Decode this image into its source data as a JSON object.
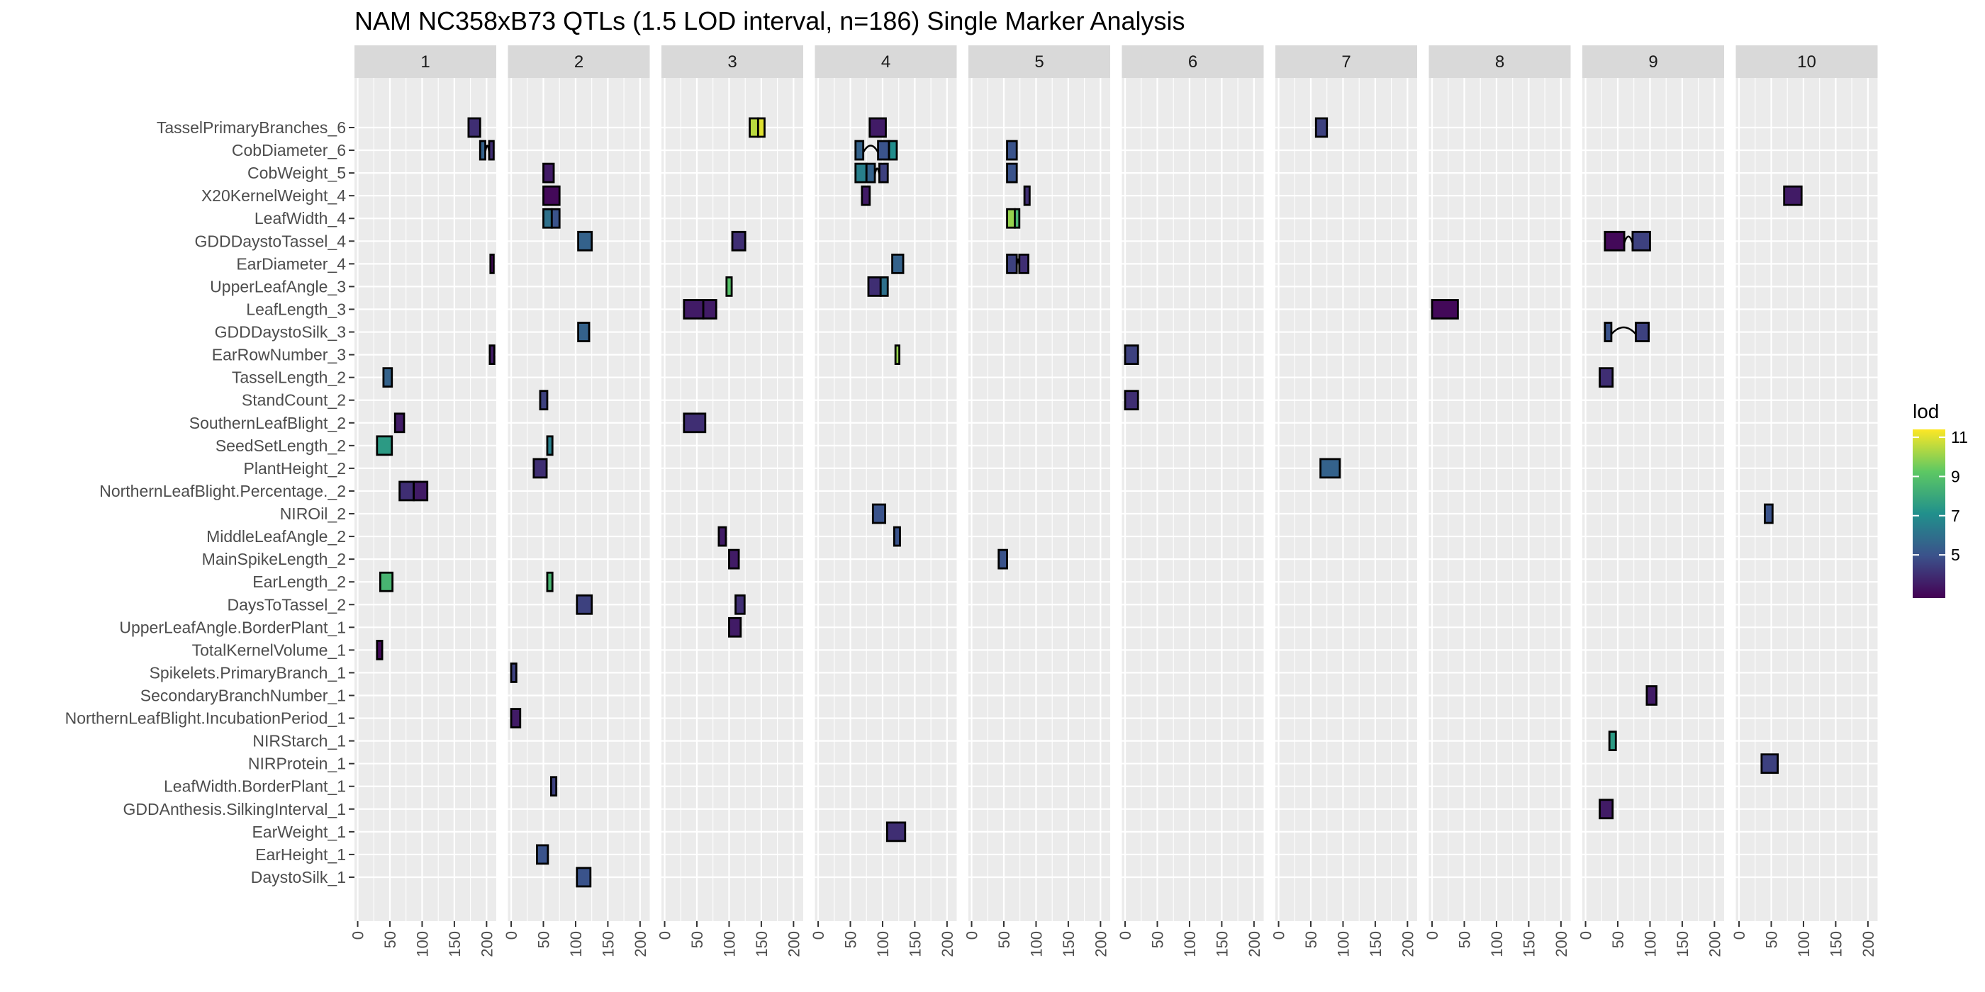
{
  "chart_data": {
    "type": "faceted-interval",
    "title": "NAM NC358xB73 QTLs (1.5 LOD interval, n=186) Single Marker Analysis",
    "facets": [
      "1",
      "2",
      "3",
      "4",
      "5",
      "6",
      "7",
      "8",
      "9",
      "10"
    ],
    "x_ticks": [
      "0",
      "50",
      "100",
      "150",
      "200"
    ],
    "xlim": [
      -5,
      215
    ],
    "traits": [
      "TasselPrimaryBranches_6",
      "CobDiameter_6",
      "CobWeight_5",
      "X20KernelWeight_4",
      "LeafWidth_4",
      "GDDDaystoTassel_4",
      "EarDiameter_4",
      "UpperLeafAngle_3",
      "LeafLength_3",
      "GDDDaystoSilk_3",
      "EarRowNumber_3",
      "TasselLength_2",
      "StandCount_2",
      "SouthernLeafBlight_2",
      "SeedSetLength_2",
      "PlantHeight_2",
      "NorthernLeafBlight.Percentage._2",
      "NIROil_2",
      "MiddleLeafAngle_2",
      "MainSpikeLength_2",
      "EarLength_2",
      "DaysToTassel_2",
      "UpperLeafAngle.BorderPlant_1",
      "TotalKernelVolume_1",
      "Spikelets.PrimaryBranch_1",
      "SecondaryBranchNumber_1",
      "NorthernLeafBlight.IncubationPeriod_1",
      "NIRStarch_1",
      "NIRProtein_1",
      "LeafWidth.BorderPlant_1",
      "GDDAnthesis.SilkingInterval_1",
      "EarWeight_1",
      "EarHeight_1",
      "DaystoSilk_1"
    ],
    "legend": {
      "title": "lod",
      "ticks": [
        5,
        7,
        9,
        11
      ],
      "range": [
        2.8,
        11.4
      ],
      "position": "right"
    },
    "intervals": [
      {
        "chr": "1",
        "trait": "TasselPrimaryBranches_6",
        "start": 172,
        "end": 190,
        "lod": 4.0
      },
      {
        "chr": "1",
        "trait": "CobDiameter_6",
        "start": 190,
        "end": 198,
        "lod": 5.5
      },
      {
        "chr": "1",
        "trait": "CobDiameter_6",
        "start": 204,
        "end": 211,
        "lod": 4.0
      },
      {
        "chr": "1",
        "trait": "EarDiameter_4",
        "start": 206,
        "end": 211,
        "lod": 3.0
      },
      {
        "chr": "1",
        "trait": "EarRowNumber_3",
        "start": 205,
        "end": 212,
        "lod": 3.5
      },
      {
        "chr": "1",
        "trait": "TasselLength_2",
        "start": 40,
        "end": 53,
        "lod": 5.5
      },
      {
        "chr": "1",
        "trait": "SouthernLeafBlight_2",
        "start": 58,
        "end": 72,
        "lod": 3.5
      },
      {
        "chr": "1",
        "trait": "SeedSetLength_2",
        "start": 30,
        "end": 53,
        "lod": 7.5
      },
      {
        "chr": "1",
        "trait": "NorthernLeafBlight.Percentage._2",
        "start": 65,
        "end": 87,
        "lod": 4.0
      },
      {
        "chr": "1",
        "trait": "NorthernLeafBlight.Percentage._2",
        "start": 87,
        "end": 108,
        "lod": 3.5
      },
      {
        "chr": "1",
        "trait": "EarLength_2",
        "start": 35,
        "end": 54,
        "lod": 8.5
      },
      {
        "chr": "1",
        "trait": "TotalKernelVolume_1",
        "start": 30,
        "end": 38,
        "lod": 3.0
      },
      {
        "chr": "2",
        "trait": "CobWeight_5",
        "start": 50,
        "end": 66,
        "lod": 3.5
      },
      {
        "chr": "2",
        "trait": "X20KernelWeight_4",
        "start": 50,
        "end": 75,
        "lod": 3.0
      },
      {
        "chr": "2",
        "trait": "LeafWidth_4",
        "start": 50,
        "end": 63,
        "lod": 6.0
      },
      {
        "chr": "2",
        "trait": "LeafWidth_4",
        "start": 63,
        "end": 75,
        "lod": 5.0
      },
      {
        "chr": "2",
        "trait": "GDDDaystoTassel_4",
        "start": 104,
        "end": 125,
        "lod": 5.5
      },
      {
        "chr": "2",
        "trait": "GDDDaystoSilk_3",
        "start": 104,
        "end": 121,
        "lod": 5.5
      },
      {
        "chr": "2",
        "trait": "StandCount_2",
        "start": 45,
        "end": 56,
        "lod": 4.5
      },
      {
        "chr": "2",
        "trait": "SeedSetLength_2",
        "start": 56,
        "end": 64,
        "lod": 6.5
      },
      {
        "chr": "2",
        "trait": "PlantHeight_2",
        "start": 35,
        "end": 55,
        "lod": 4.0
      },
      {
        "chr": "2",
        "trait": "EarLength_2",
        "start": 56,
        "end": 64,
        "lod": 8.5
      },
      {
        "chr": "2",
        "trait": "DaysToTassel_2",
        "start": 102,
        "end": 125,
        "lod": 4.5
      },
      {
        "chr": "2",
        "trait": "Spikelets.PrimaryBranch_1",
        "start": 0,
        "end": 8,
        "lod": 4.5
      },
      {
        "chr": "2",
        "trait": "NorthernLeafBlight.IncubationPeriod_1",
        "start": 0,
        "end": 14,
        "lod": 3.5
      },
      {
        "chr": "2",
        "trait": "LeafWidth.BorderPlant_1",
        "start": 62,
        "end": 70,
        "lod": 4.5
      },
      {
        "chr": "2",
        "trait": "EarHeight_1",
        "start": 40,
        "end": 57,
        "lod": 5.0
      },
      {
        "chr": "2",
        "trait": "DaystoSilk_1",
        "start": 102,
        "end": 123,
        "lod": 5.0
      },
      {
        "chr": "3",
        "trait": "TasselPrimaryBranches_6",
        "start": 132,
        "end": 145,
        "lod": 10.5
      },
      {
        "chr": "3",
        "trait": "TasselPrimaryBranches_6",
        "start": 145,
        "end": 155,
        "lod": 11.0
      },
      {
        "chr": "3",
        "trait": "UpperLeafAngle_3",
        "start": 96,
        "end": 104,
        "lod": 9.0
      },
      {
        "chr": "3",
        "trait": "LeafLength_3",
        "start": 30,
        "end": 60,
        "lod": 3.5
      },
      {
        "chr": "3",
        "trait": "LeafLength_3",
        "start": 60,
        "end": 80,
        "lod": 3.5
      },
      {
        "chr": "3",
        "trait": "SouthernLeafBlight_2",
        "start": 30,
        "end": 63,
        "lod": 4.0
      },
      {
        "chr": "3",
        "trait": "GDDDaystoTassel_4",
        "start": 105,
        "end": 125,
        "lod": 4.0
      },
      {
        "chr": "3",
        "trait": "MiddleLeafAngle_2",
        "start": 84,
        "end": 95,
        "lod": 3.5
      },
      {
        "chr": "3",
        "trait": "MainSpikeLength_2",
        "start": 100,
        "end": 115,
        "lod": 3.5
      },
      {
        "chr": "3",
        "trait": "DaysToTassel_2",
        "start": 110,
        "end": 124,
        "lod": 4.0
      },
      {
        "chr": "3",
        "trait": "UpperLeafAngle.BorderPlant_1",
        "start": 100,
        "end": 118,
        "lod": 3.5
      },
      {
        "chr": "4",
        "trait": "TasselPrimaryBranches_6",
        "start": 80,
        "end": 105,
        "lod": 3.5
      },
      {
        "chr": "4",
        "trait": "CobDiameter_6",
        "start": 58,
        "end": 70,
        "lod": 5.5
      },
      {
        "chr": "4",
        "trait": "CobDiameter_6",
        "start": 93,
        "end": 110,
        "lod": 5.0
      },
      {
        "chr": "4",
        "trait": "CobDiameter_6",
        "start": 110,
        "end": 122,
        "lod": 7.0
      },
      {
        "chr": "4",
        "trait": "CobWeight_5",
        "start": 58,
        "end": 75,
        "lod": 6.5
      },
      {
        "chr": "4",
        "trait": "CobWeight_5",
        "start": 75,
        "end": 88,
        "lod": 5.5
      },
      {
        "chr": "4",
        "trait": "CobWeight_5",
        "start": 95,
        "end": 108,
        "lod": 4.5
      },
      {
        "chr": "4",
        "trait": "X20KernelWeight_4",
        "start": 68,
        "end": 80,
        "lod": 3.5
      },
      {
        "chr": "4",
        "trait": "EarDiameter_4",
        "start": 115,
        "end": 132,
        "lod": 5.5
      },
      {
        "chr": "4",
        "trait": "UpperLeafAngle_3",
        "start": 78,
        "end": 97,
        "lod": 4.0
      },
      {
        "chr": "4",
        "trait": "UpperLeafAngle_3",
        "start": 97,
        "end": 108,
        "lod": 6.0
      },
      {
        "chr": "4",
        "trait": "EarRowNumber_3",
        "start": 120,
        "end": 126,
        "lod": 10.0
      },
      {
        "chr": "4",
        "trait": "NIROil_2",
        "start": 85,
        "end": 104,
        "lod": 5.0
      },
      {
        "chr": "4",
        "trait": "MiddleLeafAngle_2",
        "start": 118,
        "end": 127,
        "lod": 5.0
      },
      {
        "chr": "4",
        "trait": "EarWeight_1",
        "start": 107,
        "end": 135,
        "lod": 4.0
      },
      {
        "chr": "5",
        "trait": "CobDiameter_6",
        "start": 55,
        "end": 70,
        "lod": 5.0
      },
      {
        "chr": "5",
        "trait": "CobWeight_5",
        "start": 55,
        "end": 70,
        "lod": 5.0
      },
      {
        "chr": "5",
        "trait": "X20KernelWeight_4",
        "start": 82,
        "end": 90,
        "lod": 4.0
      },
      {
        "chr": "5",
        "trait": "LeafWidth_4",
        "start": 55,
        "end": 67,
        "lod": 10.0
      },
      {
        "chr": "5",
        "trait": "LeafWidth_4",
        "start": 67,
        "end": 74,
        "lod": 8.5
      },
      {
        "chr": "5",
        "trait": "EarDiameter_4",
        "start": 55,
        "end": 70,
        "lod": 4.5
      },
      {
        "chr": "5",
        "trait": "EarDiameter_4",
        "start": 74,
        "end": 88,
        "lod": 4.0
      },
      {
        "chr": "5",
        "trait": "MainSpikeLength_2",
        "start": 42,
        "end": 55,
        "lod": 5.0
      },
      {
        "chr": "6",
        "trait": "EarRowNumber_3",
        "start": 0,
        "end": 20,
        "lod": 4.5
      },
      {
        "chr": "6",
        "trait": "StandCount_2",
        "start": 0,
        "end": 20,
        "lod": 4.0
      },
      {
        "chr": "7",
        "trait": "TasselPrimaryBranches_6",
        "start": 58,
        "end": 75,
        "lod": 4.5
      },
      {
        "chr": "7",
        "trait": "PlantHeight_2",
        "start": 65,
        "end": 95,
        "lod": 5.5
      },
      {
        "chr": "8",
        "trait": "LeafLength_3",
        "start": 0,
        "end": 40,
        "lod": 3.0
      },
      {
        "chr": "9",
        "trait": "GDDDaystoTassel_4",
        "start": 30,
        "end": 60,
        "lod": 3.0
      },
      {
        "chr": "9",
        "trait": "GDDDaystoTassel_4",
        "start": 73,
        "end": 100,
        "lod": 4.5
      },
      {
        "chr": "9",
        "trait": "GDDDaystoSilk_3",
        "start": 30,
        "end": 40,
        "lod": 5.0
      },
      {
        "chr": "9",
        "trait": "GDDDaystoSilk_3",
        "start": 78,
        "end": 98,
        "lod": 4.5
      },
      {
        "chr": "9",
        "trait": "TasselLength_2",
        "start": 22,
        "end": 42,
        "lod": 4.0
      },
      {
        "chr": "9",
        "trait": "SecondaryBranchNumber_1",
        "start": 95,
        "end": 110,
        "lod": 3.5
      },
      {
        "chr": "9",
        "trait": "NIRStarch_1",
        "start": 37,
        "end": 47,
        "lod": 7.5
      },
      {
        "chr": "9",
        "trait": "GDDAnthesis.SilkingInterval_1",
        "start": 22,
        "end": 42,
        "lod": 3.5
      },
      {
        "chr": "10",
        "trait": "X20KernelWeight_4",
        "start": 70,
        "end": 97,
        "lod": 3.5
      },
      {
        "chr": "10",
        "trait": "NIROil_2",
        "start": 40,
        "end": 52,
        "lod": 5.0
      },
      {
        "chr": "10",
        "trait": "NIRProtein_1",
        "start": 35,
        "end": 60,
        "lod": 4.5
      }
    ],
    "connectors": [
      {
        "chr": "1",
        "trait": "CobDiameter_6",
        "from": 198,
        "to": 204
      },
      {
        "chr": "4",
        "trait": "CobDiameter_6",
        "from": 70,
        "to": 93
      },
      {
        "chr": "4",
        "trait": "CobWeight_5",
        "from": 88,
        "to": 95
      },
      {
        "chr": "5",
        "trait": "EarDiameter_4",
        "from": 70,
        "to": 74
      },
      {
        "chr": "9",
        "trait": "GDDDaystoTassel_4",
        "from": 60,
        "to": 73
      },
      {
        "chr": "9",
        "trait": "GDDDaystoSilk_3",
        "from": 40,
        "to": 78
      }
    ]
  }
}
